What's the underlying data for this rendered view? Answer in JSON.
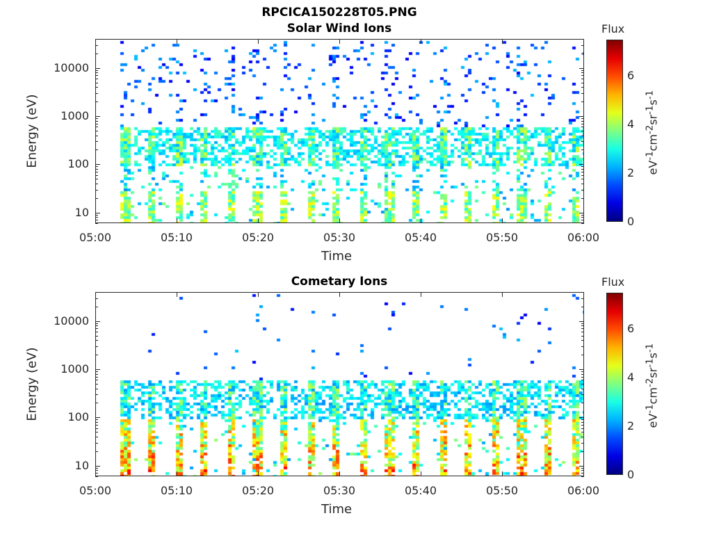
{
  "figure": {
    "filename_title": "RPCICA150228T05.PNG"
  },
  "chart_data": [
    {
      "type": "heatmap",
      "title": "Solar Wind Ions",
      "xlabel": "Time",
      "ylabel": "Energy (eV)",
      "x_tick_labels": [
        "05:00",
        "05:10",
        "05:20",
        "05:30",
        "05:40",
        "05:50",
        "06:00"
      ],
      "y_tick_labels": [
        "10",
        "100",
        "1000",
        "10000"
      ],
      "y_scale": "log",
      "ylim": [
        6,
        40000
      ],
      "xlim": [
        "05:00",
        "06:00"
      ],
      "colorbar": {
        "label": "Flux",
        "unit": "eV-1cm-2sr-1s-1",
        "ticks": [
          "0",
          "2",
          "4",
          "6"
        ],
        "range": [
          0,
          7.5
        ]
      },
      "energy_band_eV": [
        150,
        600
      ],
      "low_energy_band_eV": [
        6,
        30
      ],
      "data_start_time": "05:03"
    },
    {
      "type": "heatmap",
      "title": "Cometary Ions",
      "xlabel": "Time",
      "ylabel": "Energy (eV)",
      "x_tick_labels": [
        "05:00",
        "05:10",
        "05:20",
        "05:30",
        "05:40",
        "05:50",
        "06:00"
      ],
      "y_tick_labels": [
        "10",
        "100",
        "1000",
        "10000"
      ],
      "y_scale": "log",
      "ylim": [
        6,
        40000
      ],
      "xlim": [
        "05:00",
        "06:00"
      ],
      "colorbar": {
        "label": "Flux",
        "unit": "eV-1cm-2sr-1s-1",
        "ticks": [
          "0",
          "2",
          "4",
          "6"
        ],
        "range": [
          0,
          7.5
        ]
      },
      "energy_band_eV": [
        150,
        600
      ],
      "low_energy_band_eV": [
        6,
        100
      ],
      "data_start_time": "05:03"
    }
  ]
}
